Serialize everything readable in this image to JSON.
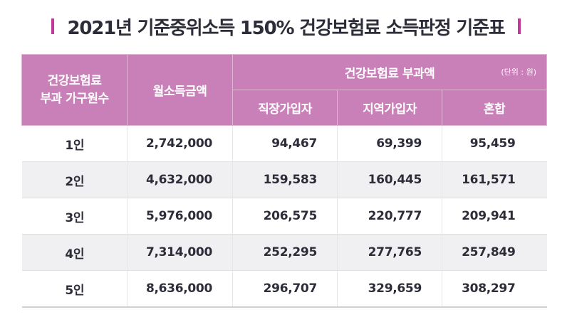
{
  "title": "2021년 기준중위소득 150% 건강보험료 소득판정 기준표",
  "accent_color": "#c2379a",
  "header_color": "#c97fb7",
  "headers": {
    "household": "건강보험료\n부과 가구원수",
    "income": "월소득금액",
    "premium_group": "건강보험료 부과액",
    "unit": "(단위 : 원)",
    "employee": "직장가입자",
    "regional": "지역가입자",
    "mixed": "혼합"
  },
  "rows": [
    {
      "size": "1인",
      "income": "2,742,000",
      "employee": "94,467",
      "regional": "69,399",
      "mixed": "95,459"
    },
    {
      "size": "2인",
      "income": "4,632,000",
      "employee": "159,583",
      "regional": "160,445",
      "mixed": "161,571"
    },
    {
      "size": "3인",
      "income": "5,976,000",
      "employee": "206,575",
      "regional": "220,777",
      "mixed": "209,941"
    },
    {
      "size": "4인",
      "income": "7,314,000",
      "employee": "252,295",
      "regional": "277,765",
      "mixed": "257,849"
    },
    {
      "size": "5인",
      "income": "8,636,000",
      "employee": "296,707",
      "regional": "329,659",
      "mixed": "308,297"
    }
  ]
}
